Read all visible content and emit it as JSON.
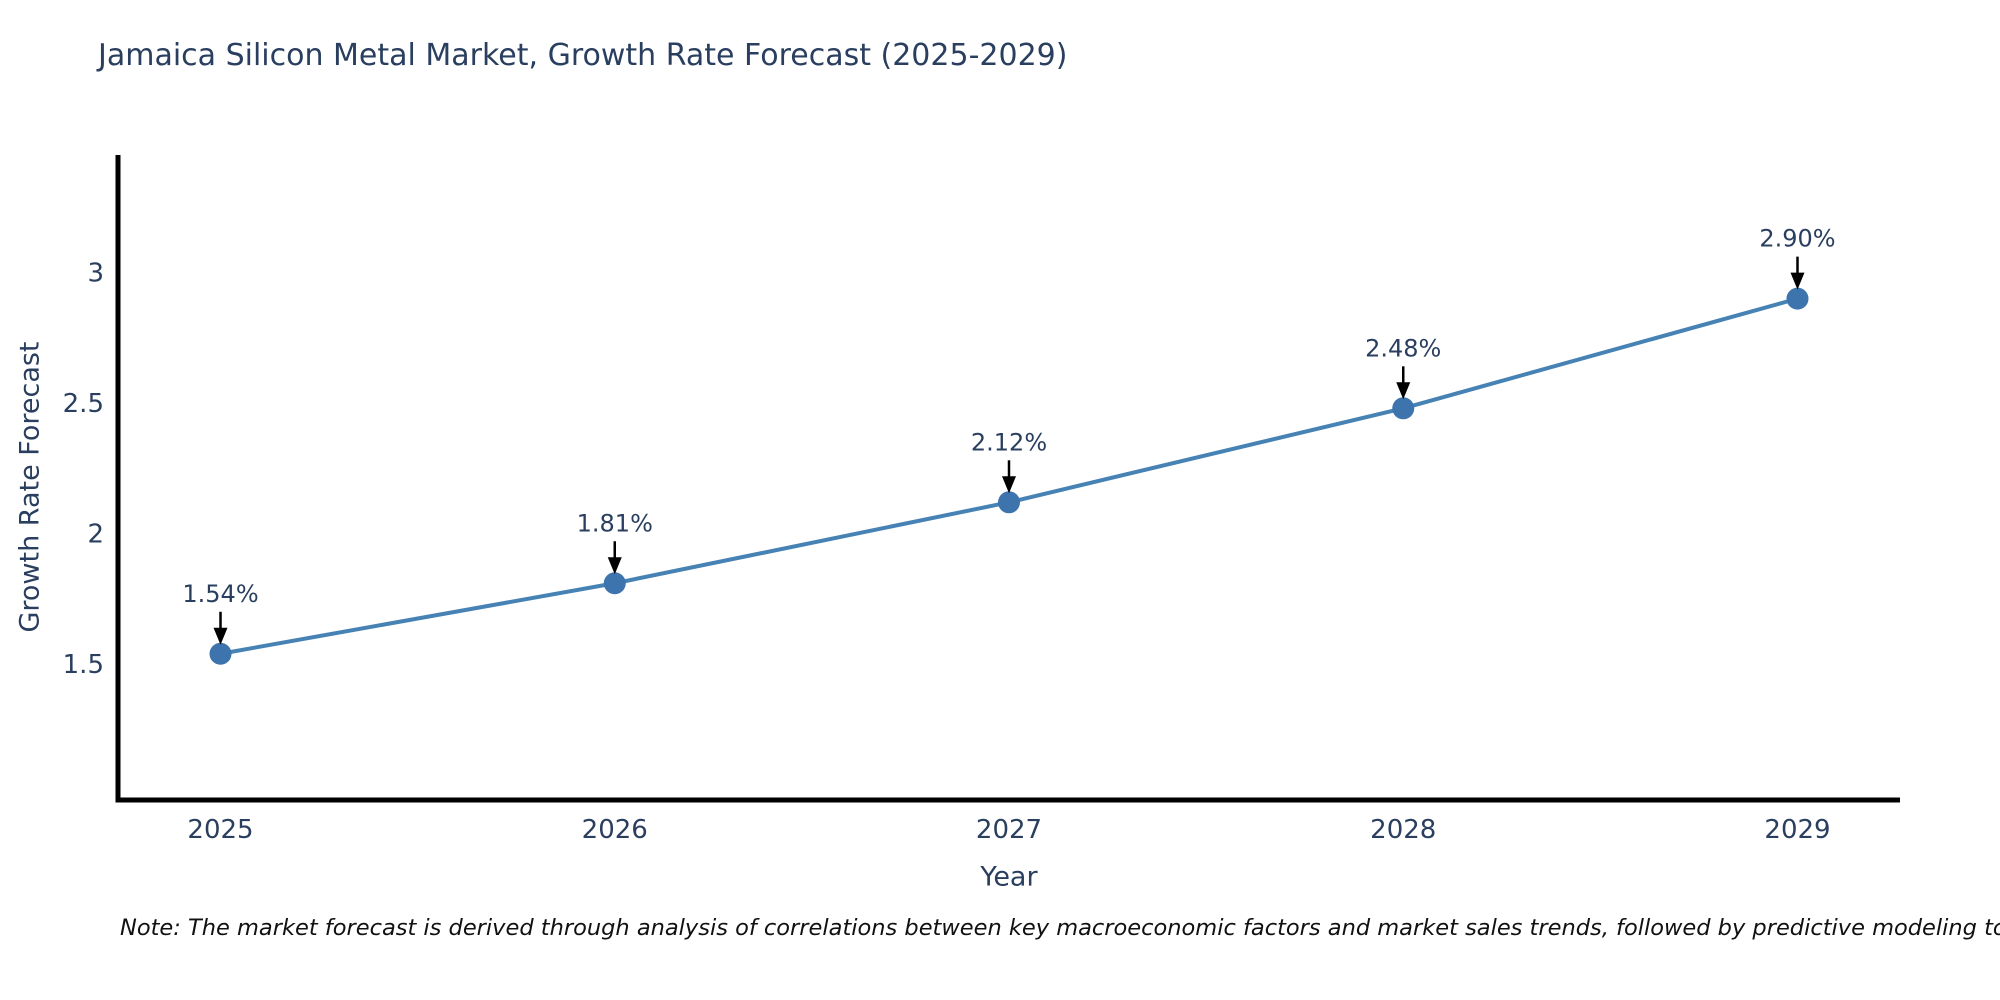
{
  "title": "Jamaica Silicon Metal Market, Growth Rate Forecast (2025-2029)",
  "note": "Note: The market forecast is derived through analysis of correlations between key macroeconomic factors and market sales trends, followed by predictive modeling to project future sales",
  "chart_data": {
    "type": "line",
    "title": "Jamaica Silicon Metal Market, Growth Rate Forecast (2025-2029)",
    "xlabel": "Year",
    "ylabel": "Growth Rate Forecast",
    "x": [
      2025,
      2026,
      2027,
      2028,
      2029
    ],
    "categories": [
      "2025",
      "2026",
      "2027",
      "2028",
      "2029"
    ],
    "series": [
      {
        "name": "Growth Rate Forecast",
        "values": [
          1.54,
          1.81,
          2.12,
          2.48,
          2.9
        ]
      }
    ],
    "point_labels": [
      "1.54%",
      "1.81%",
      "2.12%",
      "2.48%",
      "2.90%"
    ],
    "xlim": [
      2024.74,
      2029.26
    ],
    "ylim": [
      0.98,
      3.45
    ],
    "yticks": [
      1.5,
      2,
      2.5,
      3
    ],
    "ytick_labels": [
      "1.5",
      "2",
      "2.5",
      "3"
    ],
    "grid": false,
    "legend": "none",
    "colors": {
      "line": "#4682b4",
      "marker": "#3d74ad",
      "axis": "#000000",
      "text": "#2a3f5f",
      "annotation_arrow": "#000000",
      "note_text": "#111111"
    }
  }
}
